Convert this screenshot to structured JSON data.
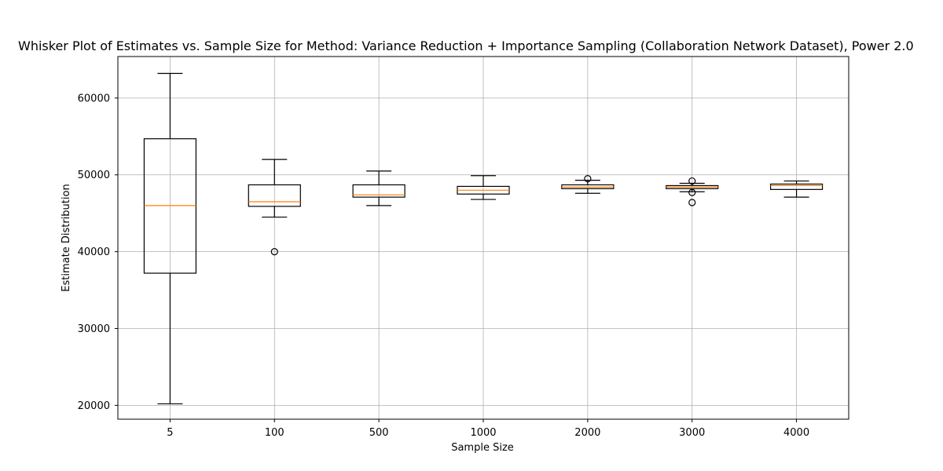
{
  "chart_data": {
    "type": "box",
    "title": "Whisker Plot of Estimates vs. Sample Size for Method: Variance Reduction + Importance Sampling (Collaboration Network Dataset), Power 2.0",
    "xlabel": "Sample Size",
    "ylabel": "Estimate Distribution",
    "ylim": [
      18200,
      65400
    ],
    "yticks": [
      20000,
      30000,
      40000,
      50000,
      60000
    ],
    "ytick_labels": [
      "20000",
      "30000",
      "40000",
      "50000",
      "60000"
    ],
    "grid": true,
    "categories": [
      "5",
      "100",
      "500",
      "1000",
      "2000",
      "3000",
      "4000"
    ],
    "boxes": [
      {
        "whisker_low": 20200,
        "q1": 37200,
        "median": 46000,
        "q3": 54700,
        "whisker_high": 63200,
        "outliers": []
      },
      {
        "whisker_low": 44500,
        "q1": 45900,
        "median": 46500,
        "q3": 48700,
        "whisker_high": 52000,
        "outliers": [
          40000
        ]
      },
      {
        "whisker_low": 46000,
        "q1": 47100,
        "median": 47400,
        "q3": 48700,
        "whisker_high": 50500,
        "outliers": []
      },
      {
        "whisker_low": 46800,
        "q1": 47500,
        "median": 48000,
        "q3": 48500,
        "whisker_high": 49900,
        "outliers": []
      },
      {
        "whisker_low": 47600,
        "q1": 48200,
        "median": 48400,
        "q3": 48700,
        "whisker_high": 49300,
        "outliers": [
          49500
        ]
      },
      {
        "whisker_low": 47800,
        "q1": 48200,
        "median": 48400,
        "q3": 48600,
        "whisker_high": 48900,
        "outliers": [
          49200,
          47700,
          46400
        ]
      },
      {
        "whisker_low": 47100,
        "q1": 48100,
        "median": 48600,
        "q3": 48800,
        "whisker_high": 49200,
        "outliers": []
      }
    ],
    "colors": {
      "box": "#000000",
      "median": "#ff7f0e",
      "grid": "#b0b0b0"
    }
  }
}
